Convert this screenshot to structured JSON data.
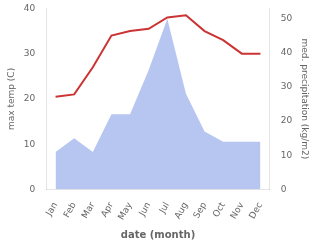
{
  "chart_data": {
    "type": "line",
    "xlabel": "date (month)",
    "ylabel": "max temp (C)",
    "y2label": "med. precipitation (kg/m2)",
    "categories": [
      "Jan",
      "Feb",
      "Mar",
      "Apr",
      "May",
      "Jun",
      "Jul",
      "Aug",
      "Sep",
      "Oct",
      "Nov",
      "Dec"
    ],
    "series": [
      {
        "type": "area",
        "axis": "y2",
        "color": "#aabbee",
        "values": [
          11,
          15,
          11,
          22,
          22,
          35,
          50,
          28,
          17,
          14,
          14,
          14
        ]
      },
      {
        "type": "line",
        "color": "#cc3333",
        "values": [
          20.5,
          21.0,
          27.0,
          34.0,
          35.0,
          35.5,
          38.0,
          38.5,
          35.0,
          33.0,
          30.0,
          30.0
        ]
      }
    ],
    "ylim": [
      0,
      40
    ],
    "yticks": [
      0,
      10,
      20,
      30,
      40
    ],
    "y2lim": [
      0,
      53
    ],
    "y2ticks": [
      0,
      10,
      20,
      30,
      40,
      50
    ],
    "grid": false
  }
}
